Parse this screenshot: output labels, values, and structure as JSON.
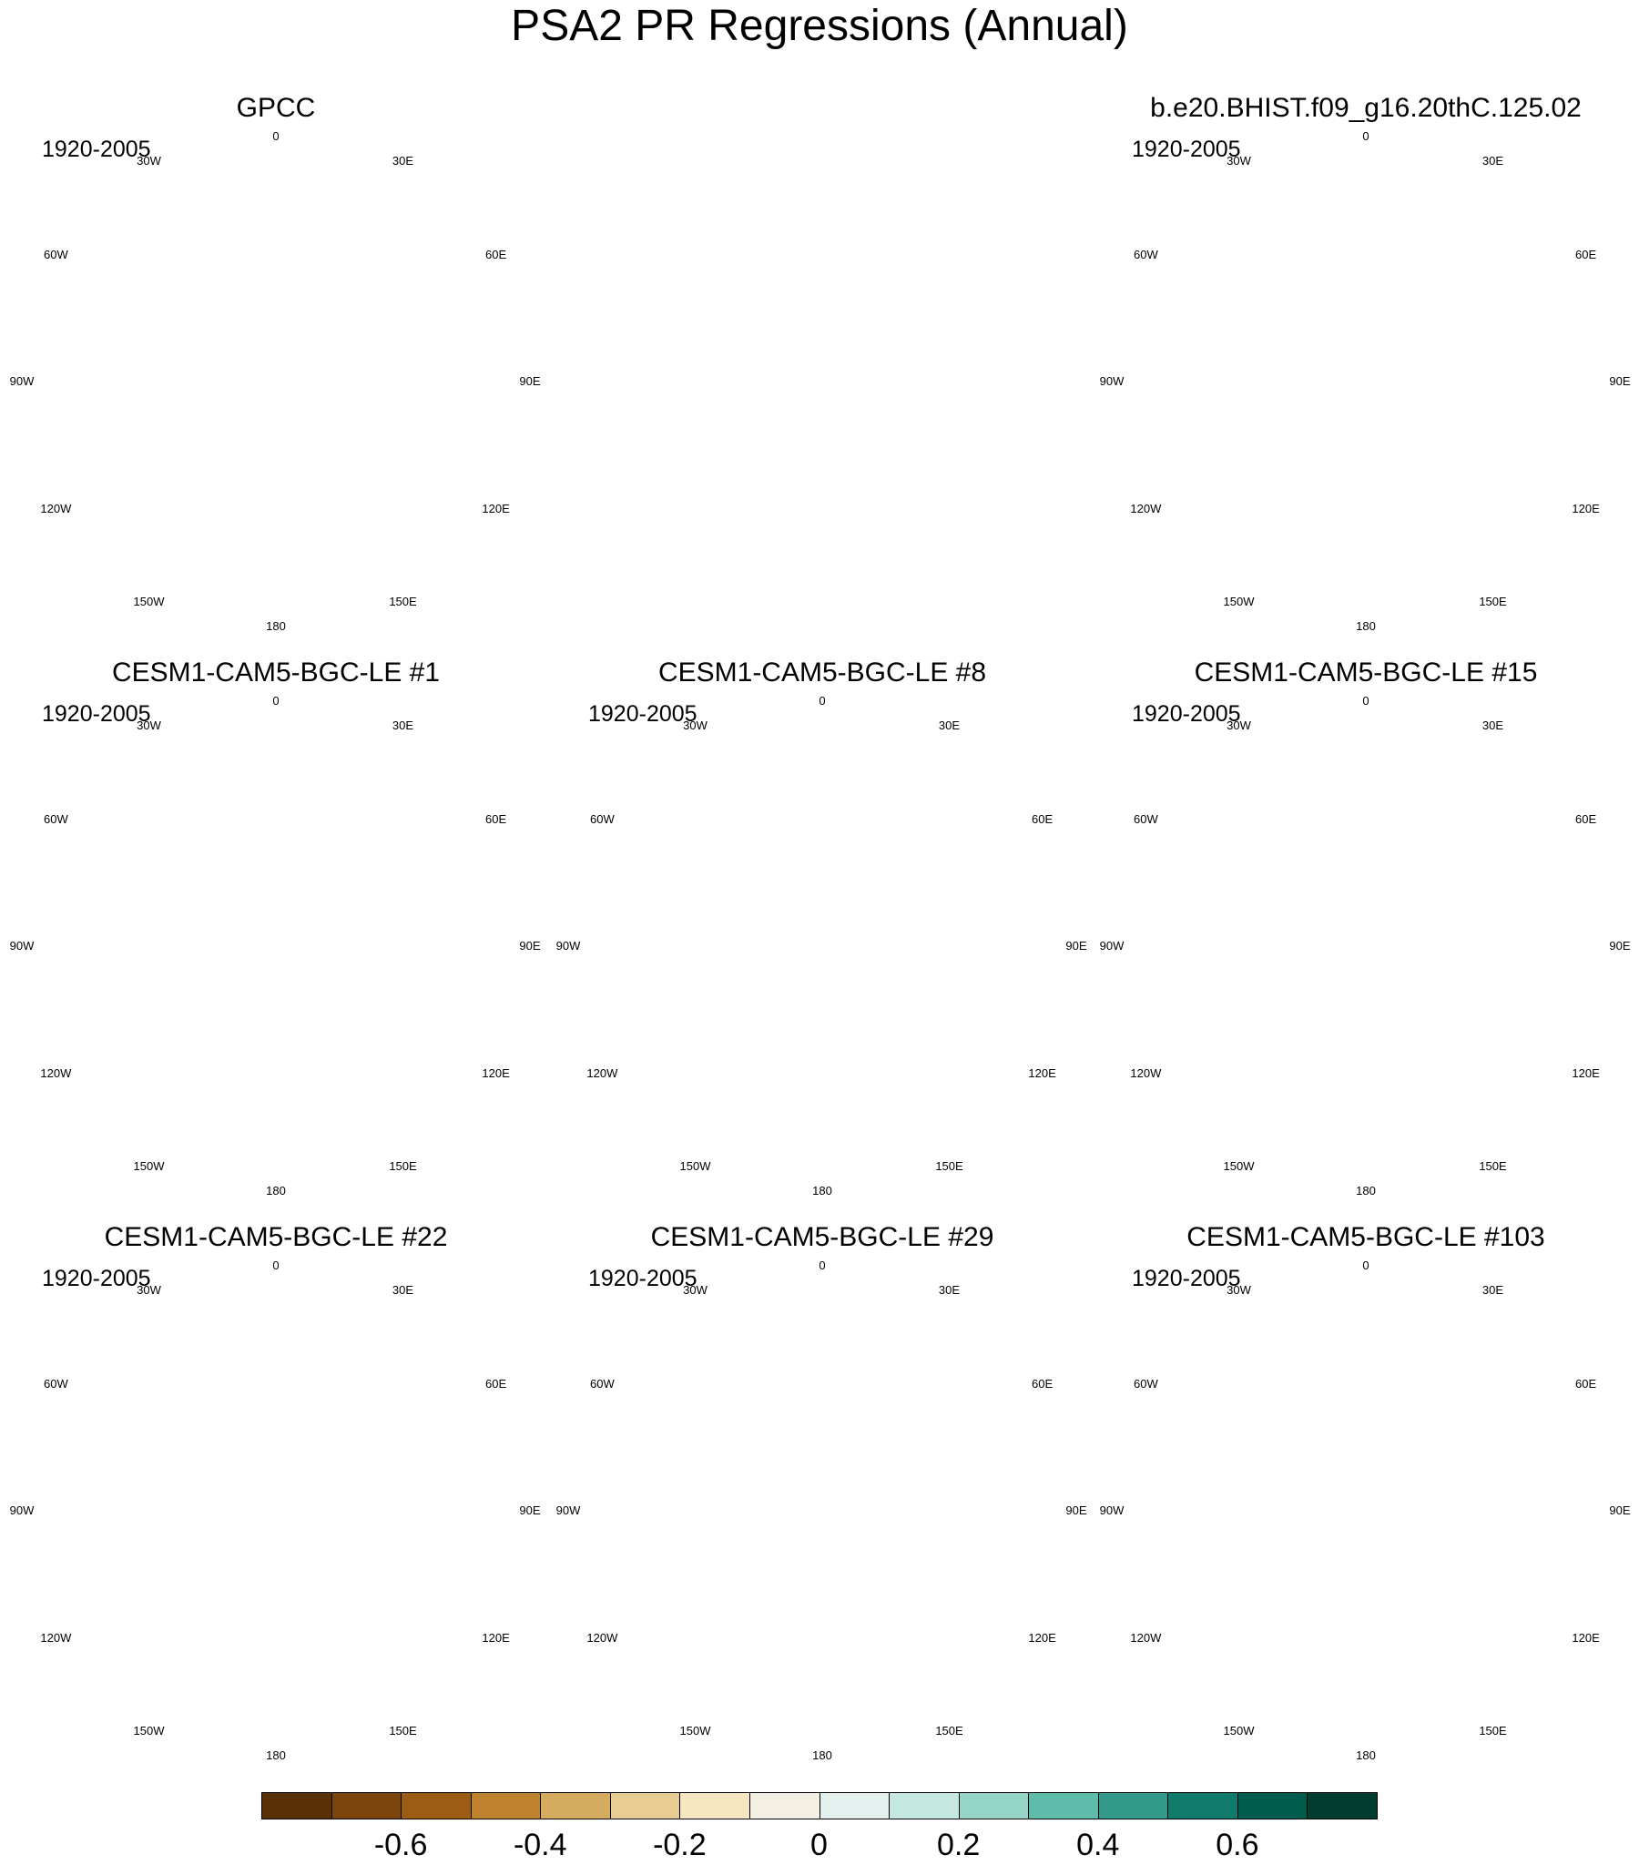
{
  "title": "PSA2 PR Regressions (Annual)",
  "panels": [
    {
      "id": "gpcc",
      "title": "GPCC",
      "period": "1920-2005",
      "kind": "obs"
    },
    {
      "id": "bhist",
      "title": "b.e20.BHIST.f09_g16.20thC.125.02",
      "period": "1920-2005",
      "kind": "model"
    },
    {
      "id": "le1",
      "title": "CESM1-CAM5-BGC-LE #1",
      "period": "1920-2005",
      "kind": "model"
    },
    {
      "id": "le8",
      "title": "CESM1-CAM5-BGC-LE #8",
      "period": "1920-2005",
      "kind": "model"
    },
    {
      "id": "le15",
      "title": "CESM1-CAM5-BGC-LE #15",
      "period": "1920-2005",
      "kind": "model"
    },
    {
      "id": "le22",
      "title": "CESM1-CAM5-BGC-LE #22",
      "period": "1920-2005",
      "kind": "model"
    },
    {
      "id": "le29",
      "title": "CESM1-CAM5-BGC-LE #29",
      "period": "1920-2005",
      "kind": "model"
    },
    {
      "id": "le103",
      "title": "CESM1-CAM5-BGC-LE #103",
      "period": "1920-2005",
      "kind": "model"
    }
  ],
  "longitude_labels": [
    "0",
    "30E",
    "60E",
    "90E",
    "120E",
    "150E",
    "180",
    "150W",
    "120W",
    "90W",
    "60W",
    "30W"
  ],
  "colorbar": {
    "colors": [
      "#5a3006",
      "#7c450b",
      "#9c5c14",
      "#bf832f",
      "#d5ab5f",
      "#e8cd92",
      "#f6e7c1",
      "#f4efe3",
      "#e4f0ee",
      "#c4e8e0",
      "#95d6c8",
      "#5fbcaa",
      "#33998a",
      "#107a6c",
      "#005c4c",
      "#003d30"
    ],
    "labels": [
      "-0.6",
      "-0.4",
      "-0.2",
      "0",
      "0.2",
      "0.4",
      "0.6"
    ],
    "label_values": [
      -0.6,
      -0.4,
      -0.2,
      0,
      0.2,
      0.4,
      0.6
    ]
  }
}
